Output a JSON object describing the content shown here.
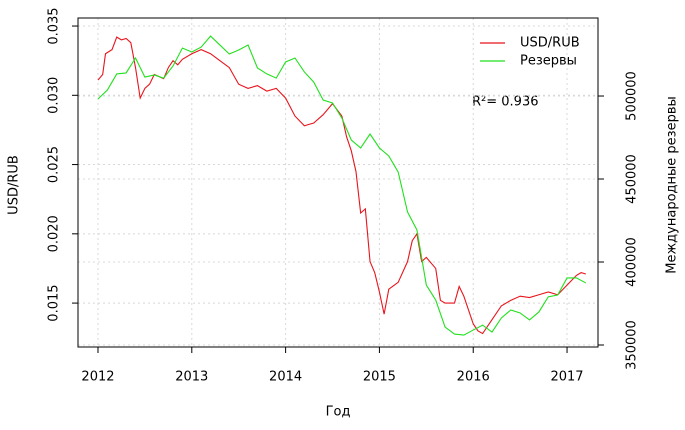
{
  "chart_data": {
    "type": "line",
    "xlabel": "Год",
    "ylabel": "USD/RUB",
    "y2label": "Международные резервы",
    "annotation": "R²= 0.936",
    "legend": "top-right",
    "grid": true,
    "xlim": [
      2011.787,
      2017.33
    ],
    "ylim": [
      0.01183,
      0.03558
    ],
    "y2lim": [
      348800,
      547000
    ],
    "xticks": [
      2012,
      2013,
      2014,
      2015,
      2016,
      2017
    ],
    "yticks": [
      0.015,
      {
        "value": 0.02,
        "label": "0.020"
      },
      0.025,
      {
        "value": 0.03,
        "label": "0.030"
      },
      0.035
    ],
    "y2ticks": [
      350000,
      400000,
      450000,
      500000
    ],
    "series": [
      {
        "name": "USD/RUB",
        "color": "#e8141c",
        "axis": "y",
        "x": [
          2012.0,
          2012.05,
          2012.08,
          2012.15,
          2012.2,
          2012.25,
          2012.3,
          2012.35,
          2012.4,
          2012.45,
          2012.5,
          2012.55,
          2012.6,
          2012.7,
          2012.75,
          2012.8,
          2012.85,
          2012.9,
          2013.0,
          2013.1,
          2013.2,
          2013.3,
          2013.4,
          2013.5,
          2013.6,
          2013.7,
          2013.8,
          2013.9,
          2014.0,
          2014.1,
          2014.2,
          2014.3,
          2014.4,
          2014.5,
          2014.6,
          2014.65,
          2014.7,
          2014.75,
          2014.8,
          2014.85,
          2014.9,
          2014.95,
          2015.0,
          2015.05,
          2015.1,
          2015.2,
          2015.3,
          2015.35,
          2015.4,
          2015.45,
          2015.5,
          2015.6,
          2015.65,
          2015.7,
          2015.8,
          2015.85,
          2015.9,
          2016.0,
          2016.05,
          2016.1,
          2016.2,
          2016.3,
          2016.4,
          2016.5,
          2016.6,
          2016.7,
          2016.8,
          2016.9,
          2017.0,
          2017.1,
          2017.15,
          2017.2
        ],
        "values": [
          0.0311,
          0.0315,
          0.033,
          0.0333,
          0.0342,
          0.034,
          0.0341,
          0.0338,
          0.032,
          0.0298,
          0.0305,
          0.0308,
          0.0315,
          0.0312,
          0.032,
          0.0325,
          0.0322,
          0.0326,
          0.033,
          0.0333,
          0.033,
          0.0325,
          0.032,
          0.0308,
          0.0305,
          0.0307,
          0.0303,
          0.0305,
          0.0298,
          0.0285,
          0.0278,
          0.028,
          0.0286,
          0.0294,
          0.0285,
          0.027,
          0.026,
          0.0245,
          0.0215,
          0.0218,
          0.018,
          0.0172,
          0.0158,
          0.0142,
          0.016,
          0.0165,
          0.018,
          0.0195,
          0.02,
          0.018,
          0.0183,
          0.0175,
          0.0152,
          0.015,
          0.015,
          0.0162,
          0.0155,
          0.0135,
          0.013,
          0.0128,
          0.0138,
          0.0148,
          0.0152,
          0.0155,
          0.0154,
          0.0156,
          0.0158,
          0.0156,
          0.0163,
          0.017,
          0.0172,
          0.0171
        ]
      },
      {
        "name": "Резервы",
        "color": "#22e01e",
        "axis": "y2",
        "x": [
          2012.0,
          2012.1,
          2012.2,
          2012.3,
          2012.4,
          2012.5,
          2012.6,
          2012.7,
          2012.8,
          2012.9,
          2013.0,
          2013.1,
          2013.2,
          2013.3,
          2013.4,
          2013.5,
          2013.6,
          2013.7,
          2013.8,
          2013.9,
          2014.0,
          2014.1,
          2014.2,
          2014.3,
          2014.4,
          2014.5,
          2014.6,
          2014.7,
          2014.8,
          2014.9,
          2015.0,
          2015.1,
          2015.2,
          2015.3,
          2015.4,
          2015.5,
          2015.6,
          2015.7,
          2015.8,
          2015.9,
          2016.0,
          2016.1,
          2016.2,
          2016.3,
          2016.4,
          2016.5,
          2016.6,
          2016.7,
          2016.8,
          2016.9,
          2017.0,
          2017.1,
          2017.2
        ],
        "values": [
          498200,
          503600,
          513300,
          513900,
          522900,
          511400,
          512700,
          510800,
          518100,
          528900,
          526500,
          529500,
          536100,
          530700,
          525300,
          527700,
          530700,
          516900,
          513300,
          510800,
          520500,
          522900,
          514500,
          508400,
          497600,
          495800,
          486700,
          473500,
          468700,
          477100,
          468700,
          463900,
          454200,
          430100,
          419300,
          386100,
          377100,
          360800,
          356600,
          356000,
          359000,
          362000,
          357800,
          366300,
          371100,
          369300,
          365100,
          369900,
          379000,
          380100,
          390400,
          390400,
          387400
        ]
      }
    ]
  }
}
